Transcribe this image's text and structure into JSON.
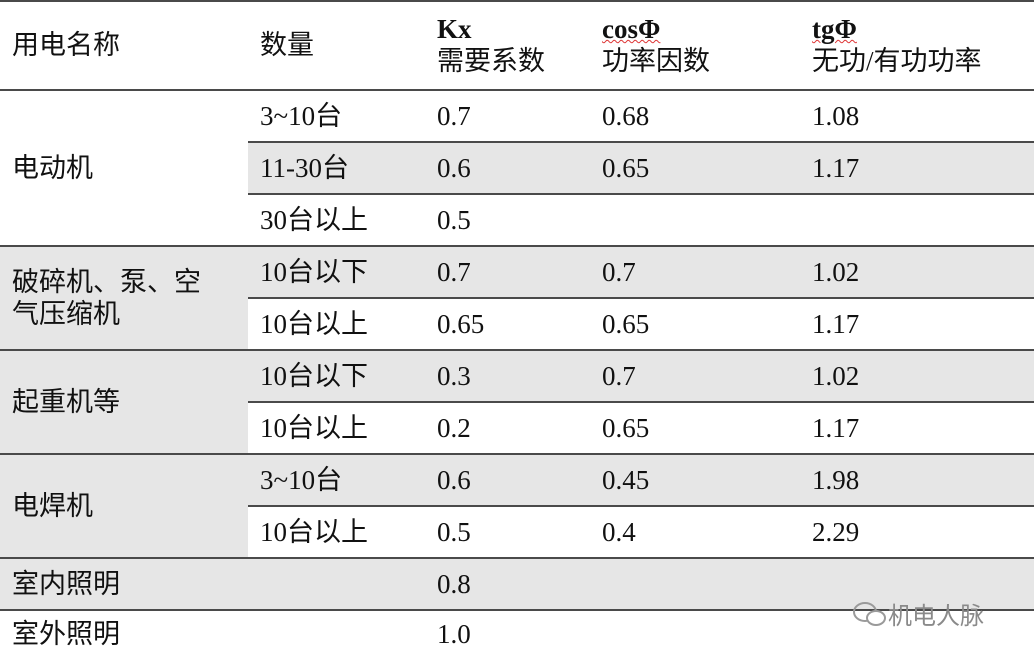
{
  "header": {
    "columns": [
      {
        "name": "用电名称"
      },
      {
        "name": "数量"
      },
      {
        "symbol": "Kx",
        "name": "需要系数"
      },
      {
        "symbol": "cosΦ",
        "name": "功率因数"
      },
      {
        "symbol": "tgΦ",
        "name": "无功/有功功率"
      }
    ]
  },
  "table": {
    "groups": [
      {
        "name": [
          "电动机"
        ],
        "rows": [
          [
            "3~10台",
            "0.7",
            "0.68",
            "1.08"
          ],
          [
            "11-30台",
            "0.6",
            "0.65",
            "1.17"
          ],
          [
            "30台以上",
            "0.5",
            null,
            null
          ]
        ]
      },
      {
        "name": [
          "破碎机、泵、空",
          "气压缩机"
        ],
        "rows": [
          [
            "10台以下",
            "0.7",
            "0.7",
            "1.02"
          ],
          [
            "10台以上",
            "0.65",
            "0.65",
            "1.17"
          ]
        ]
      },
      {
        "name": [
          "起重机等"
        ],
        "rows": [
          [
            "10台以下",
            "0.3",
            "0.7",
            "1.02"
          ],
          [
            "10台以上",
            "0.2",
            "0.65",
            "1.17"
          ]
        ]
      },
      {
        "name": [
          "电焊机"
        ],
        "rows": [
          [
            "3~10台",
            "0.6",
            "0.45",
            "1.98"
          ],
          [
            "10台以上",
            "0.5",
            "0.4",
            "2.29"
          ]
        ]
      },
      {
        "name": [
          "室内照明"
        ],
        "rows": [
          [
            null,
            "0.8",
            null,
            null
          ]
        ]
      },
      {
        "name": [
          "室外照明"
        ],
        "rows": [
          [
            null,
            "1.0",
            null,
            null
          ]
        ]
      }
    ]
  },
  "watermark": {
    "text": "机电人脉"
  }
}
